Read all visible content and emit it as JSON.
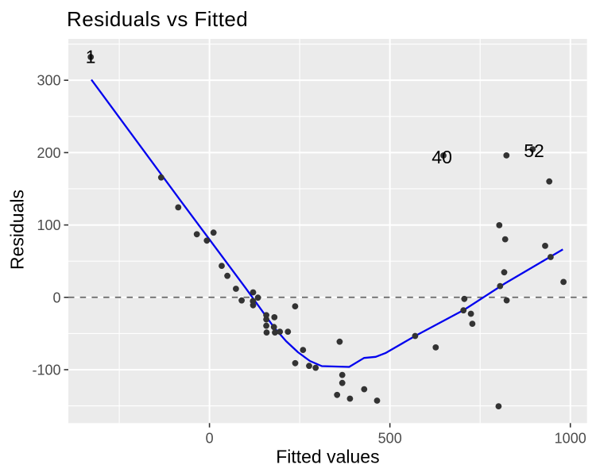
{
  "chart_data": {
    "type": "scatter",
    "title": "Residuals vs Fitted",
    "xlabel": "Fitted values",
    "ylabel": "Residuals",
    "xlim": [
      -391.1,
      1046.2
    ],
    "ylim": [
      -173.8,
      357.2
    ],
    "x_ticks_major": [
      0,
      500,
      1000
    ],
    "x_ticks_minor": [
      -250,
      250,
      750
    ],
    "y_ticks_major": [
      -100,
      0,
      100,
      200,
      300
    ],
    "y_ticks_minor": [
      -150,
      -50,
      50,
      150,
      250,
      350
    ],
    "x_tick_labels": [
      "0",
      "500",
      "1000"
    ],
    "y_tick_labels": [
      "-100",
      "0",
      "100",
      "200",
      "300"
    ],
    "grid": true,
    "legend": "none",
    "zero_line": {
      "y": 0,
      "linetype": "dashed"
    },
    "colors": {
      "panel_background": "#EBEBEB",
      "gridline": "#FFFFFF",
      "point": "#333333",
      "smooth_line": "#0000EE",
      "zero_line": "#666666",
      "tick_label": "#4D4D4D",
      "tick_mark": "#333333",
      "text": "#000000"
    },
    "points": [
      {
        "x": -329.0,
        "y": 332.1
      },
      {
        "x": -133.9,
        "y": 165.6
      },
      {
        "x": -86.5,
        "y": 124.3
      },
      {
        "x": -35.0,
        "y": 87.2
      },
      {
        "x": 11.2,
        "y": 89.4
      },
      {
        "x": -7.3,
        "y": 78.4
      },
      {
        "x": 33.9,
        "y": 43.5
      },
      {
        "x": 49.6,
        "y": 29.7
      },
      {
        "x": 73.3,
        "y": 11.8
      },
      {
        "x": 89.2,
        "y": -4.3
      },
      {
        "x": 120.9,
        "y": 6.9
      },
      {
        "x": 134.3,
        "y": -0.4
      },
      {
        "x": 120.4,
        "y": -5.2
      },
      {
        "x": 120.9,
        "y": -11.0
      },
      {
        "x": 157.5,
        "y": -24.7
      },
      {
        "x": 157.5,
        "y": -30.5
      },
      {
        "x": 157.5,
        "y": -39.3
      },
      {
        "x": 158.3,
        "y": -48.6
      },
      {
        "x": 179.9,
        "y": -27.5
      },
      {
        "x": 178.6,
        "y": -41.0
      },
      {
        "x": 181.5,
        "y": -48.6
      },
      {
        "x": 195.1,
        "y": -47.5
      },
      {
        "x": 217.4,
        "y": -47.5
      },
      {
        "x": 237.4,
        "y": -12.4
      },
      {
        "x": 259.2,
        "y": -72.7
      },
      {
        "x": 237.6,
        "y": -91.0
      },
      {
        "x": 276.2,
        "y": -94.7
      },
      {
        "x": 294.2,
        "y": -97.4
      },
      {
        "x": 360.7,
        "y": -61.3
      },
      {
        "x": 368.0,
        "y": -107.2
      },
      {
        "x": 368.0,
        "y": -118.3
      },
      {
        "x": 353.7,
        "y": -134.9
      },
      {
        "x": 389.3,
        "y": -140.0
      },
      {
        "x": 428.7,
        "y": -127.0
      },
      {
        "x": 464.4,
        "y": -142.8
      },
      {
        "x": 569.9,
        "y": -53.4
      },
      {
        "x": 627.0,
        "y": -69.2
      },
      {
        "x": 706.2,
        "y": -2.2
      },
      {
        "x": 703.8,
        "y": -18.0
      },
      {
        "x": 724.4,
        "y": -22.7
      },
      {
        "x": 728.4,
        "y": -36.5
      },
      {
        "x": 816.8,
        "y": 34.6
      },
      {
        "x": 805.3,
        "y": 15.6
      },
      {
        "x": 823.6,
        "y": -4.2
      },
      {
        "x": 801.1,
        "y": -150.6
      },
      {
        "x": 822.9,
        "y": 196.1
      },
      {
        "x": 648.3,
        "y": 196.0
      },
      {
        "x": 895.6,
        "y": 204.7
      },
      {
        "x": 941.7,
        "y": 160.2
      },
      {
        "x": 803.1,
        "y": 99.6
      },
      {
        "x": 819.4,
        "y": 80.2
      },
      {
        "x": 930.2,
        "y": 71.1
      },
      {
        "x": 945.4,
        "y": 55.7
      },
      {
        "x": 981.1,
        "y": 21.2
      }
    ],
    "point_labels": [
      {
        "text": "1",
        "x": -329.4,
        "y": 332.5
      },
      {
        "text": "40",
        "x": 644.1,
        "y": 194.1
      },
      {
        "text": "52",
        "x": 899.4,
        "y": 202.6
      }
    ],
    "smooth_line": [
      [
        -327.2,
        300.8
      ],
      [
        -74.0,
        129.5
      ],
      [
        100.0,
        13.0
      ],
      [
        179.2,
        -41.8
      ],
      [
        212.3,
        -60.5
      ],
      [
        245.3,
        -75.9
      ],
      [
        278.3,
        -87.9
      ],
      [
        311.4,
        -95.1
      ],
      [
        348.8,
        -95.6
      ],
      [
        387.1,
        -96.2
      ],
      [
        428.3,
        -83.8
      ],
      [
        460.7,
        -82.2
      ],
      [
        487.5,
        -77.1
      ],
      [
        569.9,
        -53.4
      ],
      [
        706.2,
        -17.1
      ],
      [
        817.9,
        19.0
      ],
      [
        979.2,
        66.2
      ]
    ]
  }
}
